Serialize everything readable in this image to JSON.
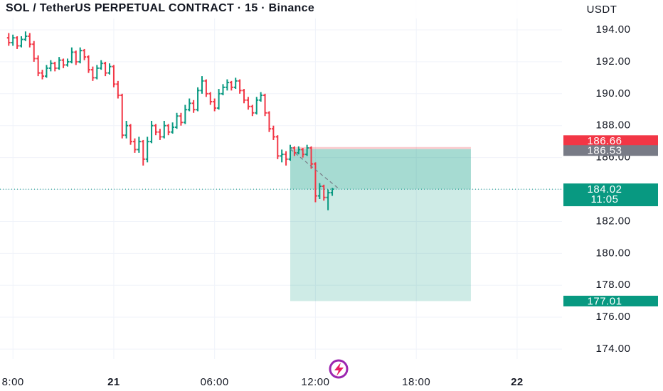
{
  "chart_data": {
    "type": "ohlc",
    "title": "SOL / TetherUS PERPETUAL CONTRACT · 15 · Binance",
    "currency": "USDT",
    "up_color": "#089981",
    "down_color": "#f23645",
    "grid": true,
    "xlim": [
      -6.77,
      26.67
    ],
    "xticks": [
      {
        "value": -6,
        "label": "8:00"
      },
      {
        "value": 0,
        "label": "21"
      },
      {
        "value": 6,
        "label": "06:00"
      },
      {
        "value": 12,
        "label": "12:00"
      },
      {
        "value": 18,
        "label": "18:00"
      },
      {
        "value": 24,
        "label": "22"
      }
    ],
    "ylim": [
      173.38,
      195.87
    ],
    "yticks": [
      {
        "value": 174,
        "label": "174.00"
      },
      {
        "value": 176,
        "label": "176.00"
      },
      {
        "value": 178,
        "label": "178.00"
      },
      {
        "value": 180,
        "label": "180.00"
      },
      {
        "value": 182,
        "label": "182.00"
      },
      {
        "value": 184,
        "label": "184.00"
      },
      {
        "value": 186,
        "label": "186.00"
      },
      {
        "value": 188,
        "label": "188.00"
      },
      {
        "value": 190,
        "label": "190.00"
      },
      {
        "value": 192,
        "label": "192.00"
      },
      {
        "value": 194,
        "label": "194.00"
      }
    ],
    "x": [
      -6.25,
      -6,
      -5.75,
      -5.5,
      -5.25,
      -5,
      -4.75,
      -4.5,
      -4.25,
      -4,
      -3.75,
      -3.5,
      -3.25,
      -3,
      -2.75,
      -2.5,
      -2.25,
      -2,
      -1.75,
      -1.5,
      -1.25,
      -1,
      -0.75,
      -0.5,
      -0.25,
      0,
      0.25,
      0.5,
      0.75,
      1,
      1.25,
      1.5,
      1.75,
      2,
      2.25,
      2.5,
      2.75,
      3,
      3.25,
      3.5,
      3.75,
      4,
      4.25,
      4.5,
      4.75,
      5,
      5.25,
      5.5,
      5.75,
      6,
      6.25,
      6.5,
      6.75,
      7,
      7.25,
      7.5,
      7.75,
      8,
      8.25,
      8.5,
      8.75,
      9,
      9.25,
      9.5,
      9.75,
      10,
      10.25,
      10.5,
      10.75,
      11,
      11.25,
      11.5,
      11.75,
      12,
      12.25,
      12.5,
      12.75,
      13
    ],
    "ohlc": [
      [
        193.5,
        193.8,
        193.0,
        193.2
      ],
      [
        193.2,
        193.7,
        193.0,
        193.5
      ],
      [
        193.5,
        193.6,
        192.8,
        193.0
      ],
      [
        193.0,
        193.6,
        192.9,
        193.4
      ],
      [
        193.4,
        193.9,
        193.3,
        193.6
      ],
      [
        193.6,
        193.8,
        192.9,
        193.1
      ],
      [
        193.1,
        193.3,
        192.0,
        192.2
      ],
      [
        192.2,
        192.4,
        191.1,
        191.3
      ],
      [
        191.3,
        191.5,
        190.9,
        191.1
      ],
      [
        191.1,
        191.8,
        191.0,
        191.6
      ],
      [
        191.6,
        192.1,
        191.4,
        191.9
      ],
      [
        191.9,
        192.0,
        191.4,
        191.6
      ],
      [
        191.6,
        192.3,
        191.5,
        192.1
      ],
      [
        192.1,
        192.2,
        191.6,
        191.8
      ],
      [
        191.8,
        192.2,
        191.7,
        192.0
      ],
      [
        192.0,
        192.9,
        191.9,
        192.6
      ],
      [
        192.6,
        192.7,
        191.8,
        192.0
      ],
      [
        192.0,
        192.9,
        191.9,
        192.7
      ],
      [
        192.7,
        192.8,
        192.1,
        192.3
      ],
      [
        192.3,
        192.4,
        191.3,
        191.5
      ],
      [
        191.5,
        191.7,
        190.8,
        191.0
      ],
      [
        191.0,
        191.8,
        190.9,
        191.6
      ],
      [
        191.6,
        192.1,
        191.5,
        191.9
      ],
      [
        191.9,
        192.0,
        191.1,
        191.3
      ],
      [
        191.3,
        191.9,
        191.2,
        191.7
      ],
      [
        191.7,
        191.8,
        190.4,
        190.6
      ],
      [
        190.6,
        190.8,
        189.7,
        189.9
      ],
      [
        189.9,
        190.0,
        187.2,
        187.4
      ],
      [
        187.4,
        188.3,
        187.2,
        188.0
      ],
      [
        188.0,
        188.1,
        186.8,
        187.0
      ],
      [
        187.0,
        187.2,
        186.3,
        186.5
      ],
      [
        186.5,
        187.3,
        186.3,
        187.0
      ],
      [
        187.0,
        187.1,
        185.5,
        185.9
      ],
      [
        185.9,
        187.3,
        185.7,
        187.0
      ],
      [
        187.0,
        188.3,
        186.9,
        188.0
      ],
      [
        188.0,
        188.1,
        187.4,
        187.6
      ],
      [
        187.6,
        187.8,
        187.1,
        187.3
      ],
      [
        187.3,
        188.3,
        187.2,
        188.0
      ],
      [
        188.0,
        188.1,
        187.4,
        187.6
      ],
      [
        187.6,
        188.2,
        187.5,
        187.9
      ],
      [
        187.9,
        188.8,
        187.8,
        188.6
      ],
      [
        188.6,
        188.8,
        188.0,
        188.2
      ],
      [
        188.2,
        189.3,
        188.1,
        189.0
      ],
      [
        189.0,
        189.7,
        188.9,
        189.4
      ],
      [
        189.4,
        189.6,
        188.8,
        189.0
      ],
      [
        189.0,
        190.4,
        188.9,
        190.2
      ],
      [
        190.2,
        191.1,
        190.0,
        190.8
      ],
      [
        190.8,
        190.9,
        189.8,
        190.0
      ],
      [
        190.0,
        190.1,
        189.3,
        189.5
      ],
      [
        189.5,
        189.7,
        188.9,
        189.1
      ],
      [
        189.1,
        190.3,
        189.0,
        190.0
      ],
      [
        190.0,
        190.6,
        189.9,
        190.4
      ],
      [
        190.4,
        190.9,
        190.2,
        190.7
      ],
      [
        190.7,
        190.8,
        190.2,
        190.4
      ],
      [
        190.4,
        191.0,
        190.3,
        190.8
      ],
      [
        190.8,
        190.9,
        190.0,
        190.2
      ],
      [
        190.2,
        190.3,
        189.4,
        189.6
      ],
      [
        189.6,
        189.8,
        189.0,
        189.2
      ],
      [
        189.2,
        189.3,
        188.6,
        188.8
      ],
      [
        188.8,
        189.8,
        188.7,
        189.6
      ],
      [
        189.6,
        190.1,
        189.5,
        189.9
      ],
      [
        189.9,
        190.0,
        188.6,
        188.8
      ],
      [
        188.8,
        188.9,
        187.6,
        187.8
      ],
      [
        187.8,
        188.0,
        187.1,
        187.3
      ],
      [
        187.3,
        187.4,
        185.9,
        186.1
      ],
      [
        186.1,
        186.5,
        185.7,
        186.2
      ],
      [
        186.2,
        186.4,
        185.5,
        185.9
      ],
      [
        185.9,
        186.8,
        185.8,
        186.6
      ],
      [
        186.6,
        186.7,
        186.1,
        186.3
      ],
      [
        186.3,
        186.7,
        186.2,
        186.5
      ],
      [
        186.5,
        186.6,
        186.0,
        186.2
      ],
      [
        186.2,
        186.8,
        186.1,
        186.6
      ],
      [
        186.6,
        186.7,
        185.3,
        185.6
      ],
      [
        185.6,
        185.7,
        183.2,
        183.6
      ],
      [
        183.6,
        184.4,
        183.4,
        184.2
      ],
      [
        184.2,
        184.3,
        183.3,
        183.5
      ],
      [
        183.5,
        184.0,
        182.7,
        183.8
      ],
      [
        183.8,
        184.1,
        183.6,
        184.02
      ]
    ],
    "last_price": 184.02,
    "countdown": "11:05",
    "position": {
      "start": 10.5,
      "end": 21.25,
      "stop": 186.66,
      "entry": 186.53,
      "target": 177.01
    }
  }
}
